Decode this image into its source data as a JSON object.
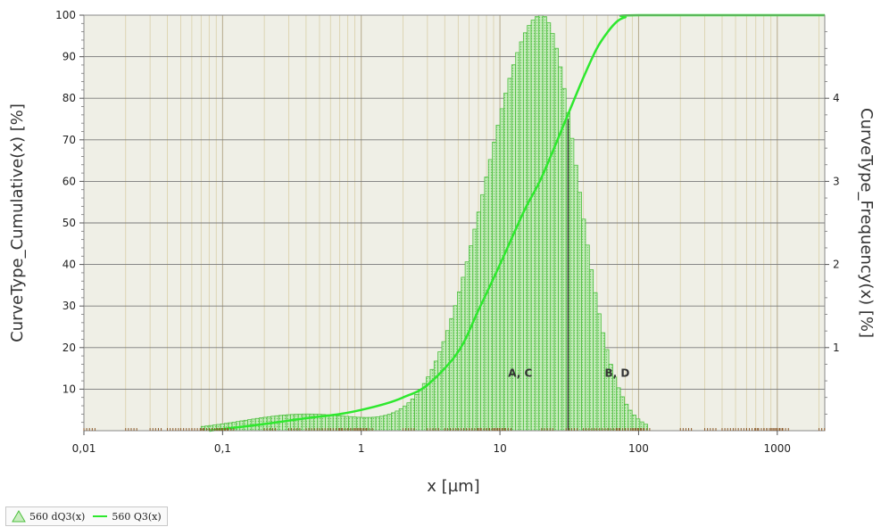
{
  "chart_data": {
    "type": "bar",
    "xlabel": "x [µm]",
    "ylabel_left": "CurveType_Cumulative(x) [%]",
    "ylabel_right": "CurveType_Frequency(x) [%]",
    "x_scale": "log",
    "xlim": [
      0.01,
      2200
    ],
    "ylim_left": [
      0,
      100
    ],
    "ylim_right": [
      0,
      5
    ],
    "x_ticks": [
      {
        "value": 0.01,
        "label": "0,01"
      },
      {
        "value": 0.1,
        "label": "0,1"
      },
      {
        "value": 1,
        "label": "1"
      },
      {
        "value": 10,
        "label": "10"
      },
      {
        "value": 100,
        "label": "100"
      },
      {
        "value": 1000,
        "label": "1000"
      }
    ],
    "y_left_ticks": [
      10,
      20,
      30,
      40,
      50,
      60,
      70,
      80,
      90,
      100
    ],
    "y_right_ticks": [
      1,
      2,
      3,
      4
    ],
    "grid": true,
    "legend_position": "bottom-left",
    "series": [
      {
        "name": "560 dQ3(x)",
        "kind": "histogram",
        "axis": "right",
        "color": "#4bbf3c",
        "fill": "#c9ecbf",
        "peak_x": 20,
        "peak_value": 5.0,
        "lower_width_log10": 0.4,
        "upper_width_log10": 0.26,
        "shoulder": {
          "center": 0.4,
          "amplitude": 0.2,
          "width_log10": 0.45
        },
        "range": [
          0.07,
          110
        ]
      },
      {
        "name": "560 Q3(x)",
        "kind": "cumulative",
        "axis": "left",
        "color": "#2ee82e",
        "points": [
          [
            0.08,
            0
          ],
          [
            0.1,
            0.4
          ],
          [
            0.2,
            1.6
          ],
          [
            0.4,
            3
          ],
          [
            0.7,
            4
          ],
          [
            1,
            5
          ],
          [
            1.5,
            6.5
          ],
          [
            2,
            8
          ],
          [
            3,
            11
          ],
          [
            5,
            19
          ],
          [
            7,
            29
          ],
          [
            10,
            40
          ],
          [
            15,
            53
          ],
          [
            20,
            61
          ],
          [
            30,
            75
          ],
          [
            40,
            85
          ],
          [
            50,
            92
          ],
          [
            60,
            96
          ],
          [
            70,
            98.5
          ],
          [
            80,
            99.5
          ],
          [
            100,
            100
          ],
          [
            2200,
            100
          ]
        ]
      }
    ],
    "vertical_marker": {
      "x": 31
    },
    "annotations": [
      {
        "text": "A, C",
        "x": 14,
        "y": 13
      },
      {
        "text": "B, D",
        "x": 70,
        "y": 13
      }
    ]
  }
}
